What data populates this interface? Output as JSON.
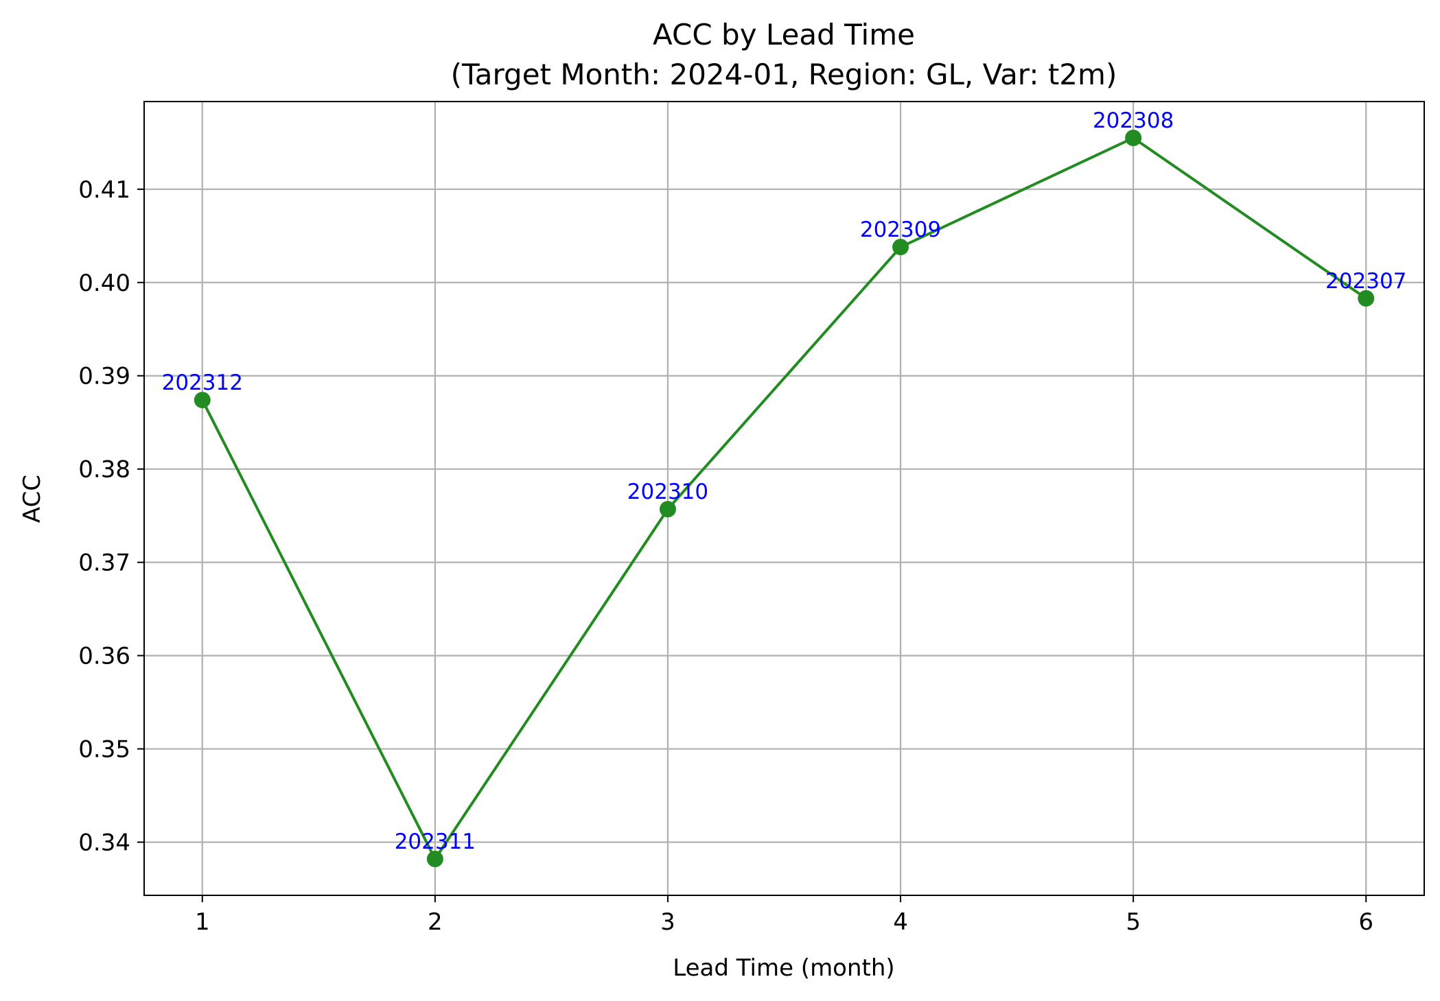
{
  "chart_data": {
    "type": "line",
    "title": "ACC by Lead Time",
    "subtitle": "(Target Month: 2024-01, Region: GL, Var: t2m)",
    "xlabel": "Lead Time (month)",
    "ylabel": "ACC",
    "x": [
      1,
      2,
      3,
      4,
      5,
      6
    ],
    "xlim": [
      0.75,
      6.25
    ],
    "ylim": [
      0.3343,
      0.4194
    ],
    "xticks": [
      1,
      2,
      3,
      4,
      5,
      6
    ],
    "yticks": [
      0.34,
      0.35,
      0.36,
      0.37,
      0.38,
      0.39,
      0.4,
      0.41
    ],
    "ytick_labels": [
      "0.34",
      "0.35",
      "0.36",
      "0.37",
      "0.38",
      "0.39",
      "0.40",
      "0.41"
    ],
    "grid": true,
    "series": [
      {
        "values": [
          0.3874,
          0.3382,
          0.3757,
          0.4038,
          0.4155,
          0.3983
        ],
        "point_labels": [
          "202312",
          "202311",
          "202310",
          "202309",
          "202308",
          "202307"
        ],
        "color": "#228b22",
        "marker": "circle"
      }
    ],
    "annotation_color": "#0000ff"
  }
}
